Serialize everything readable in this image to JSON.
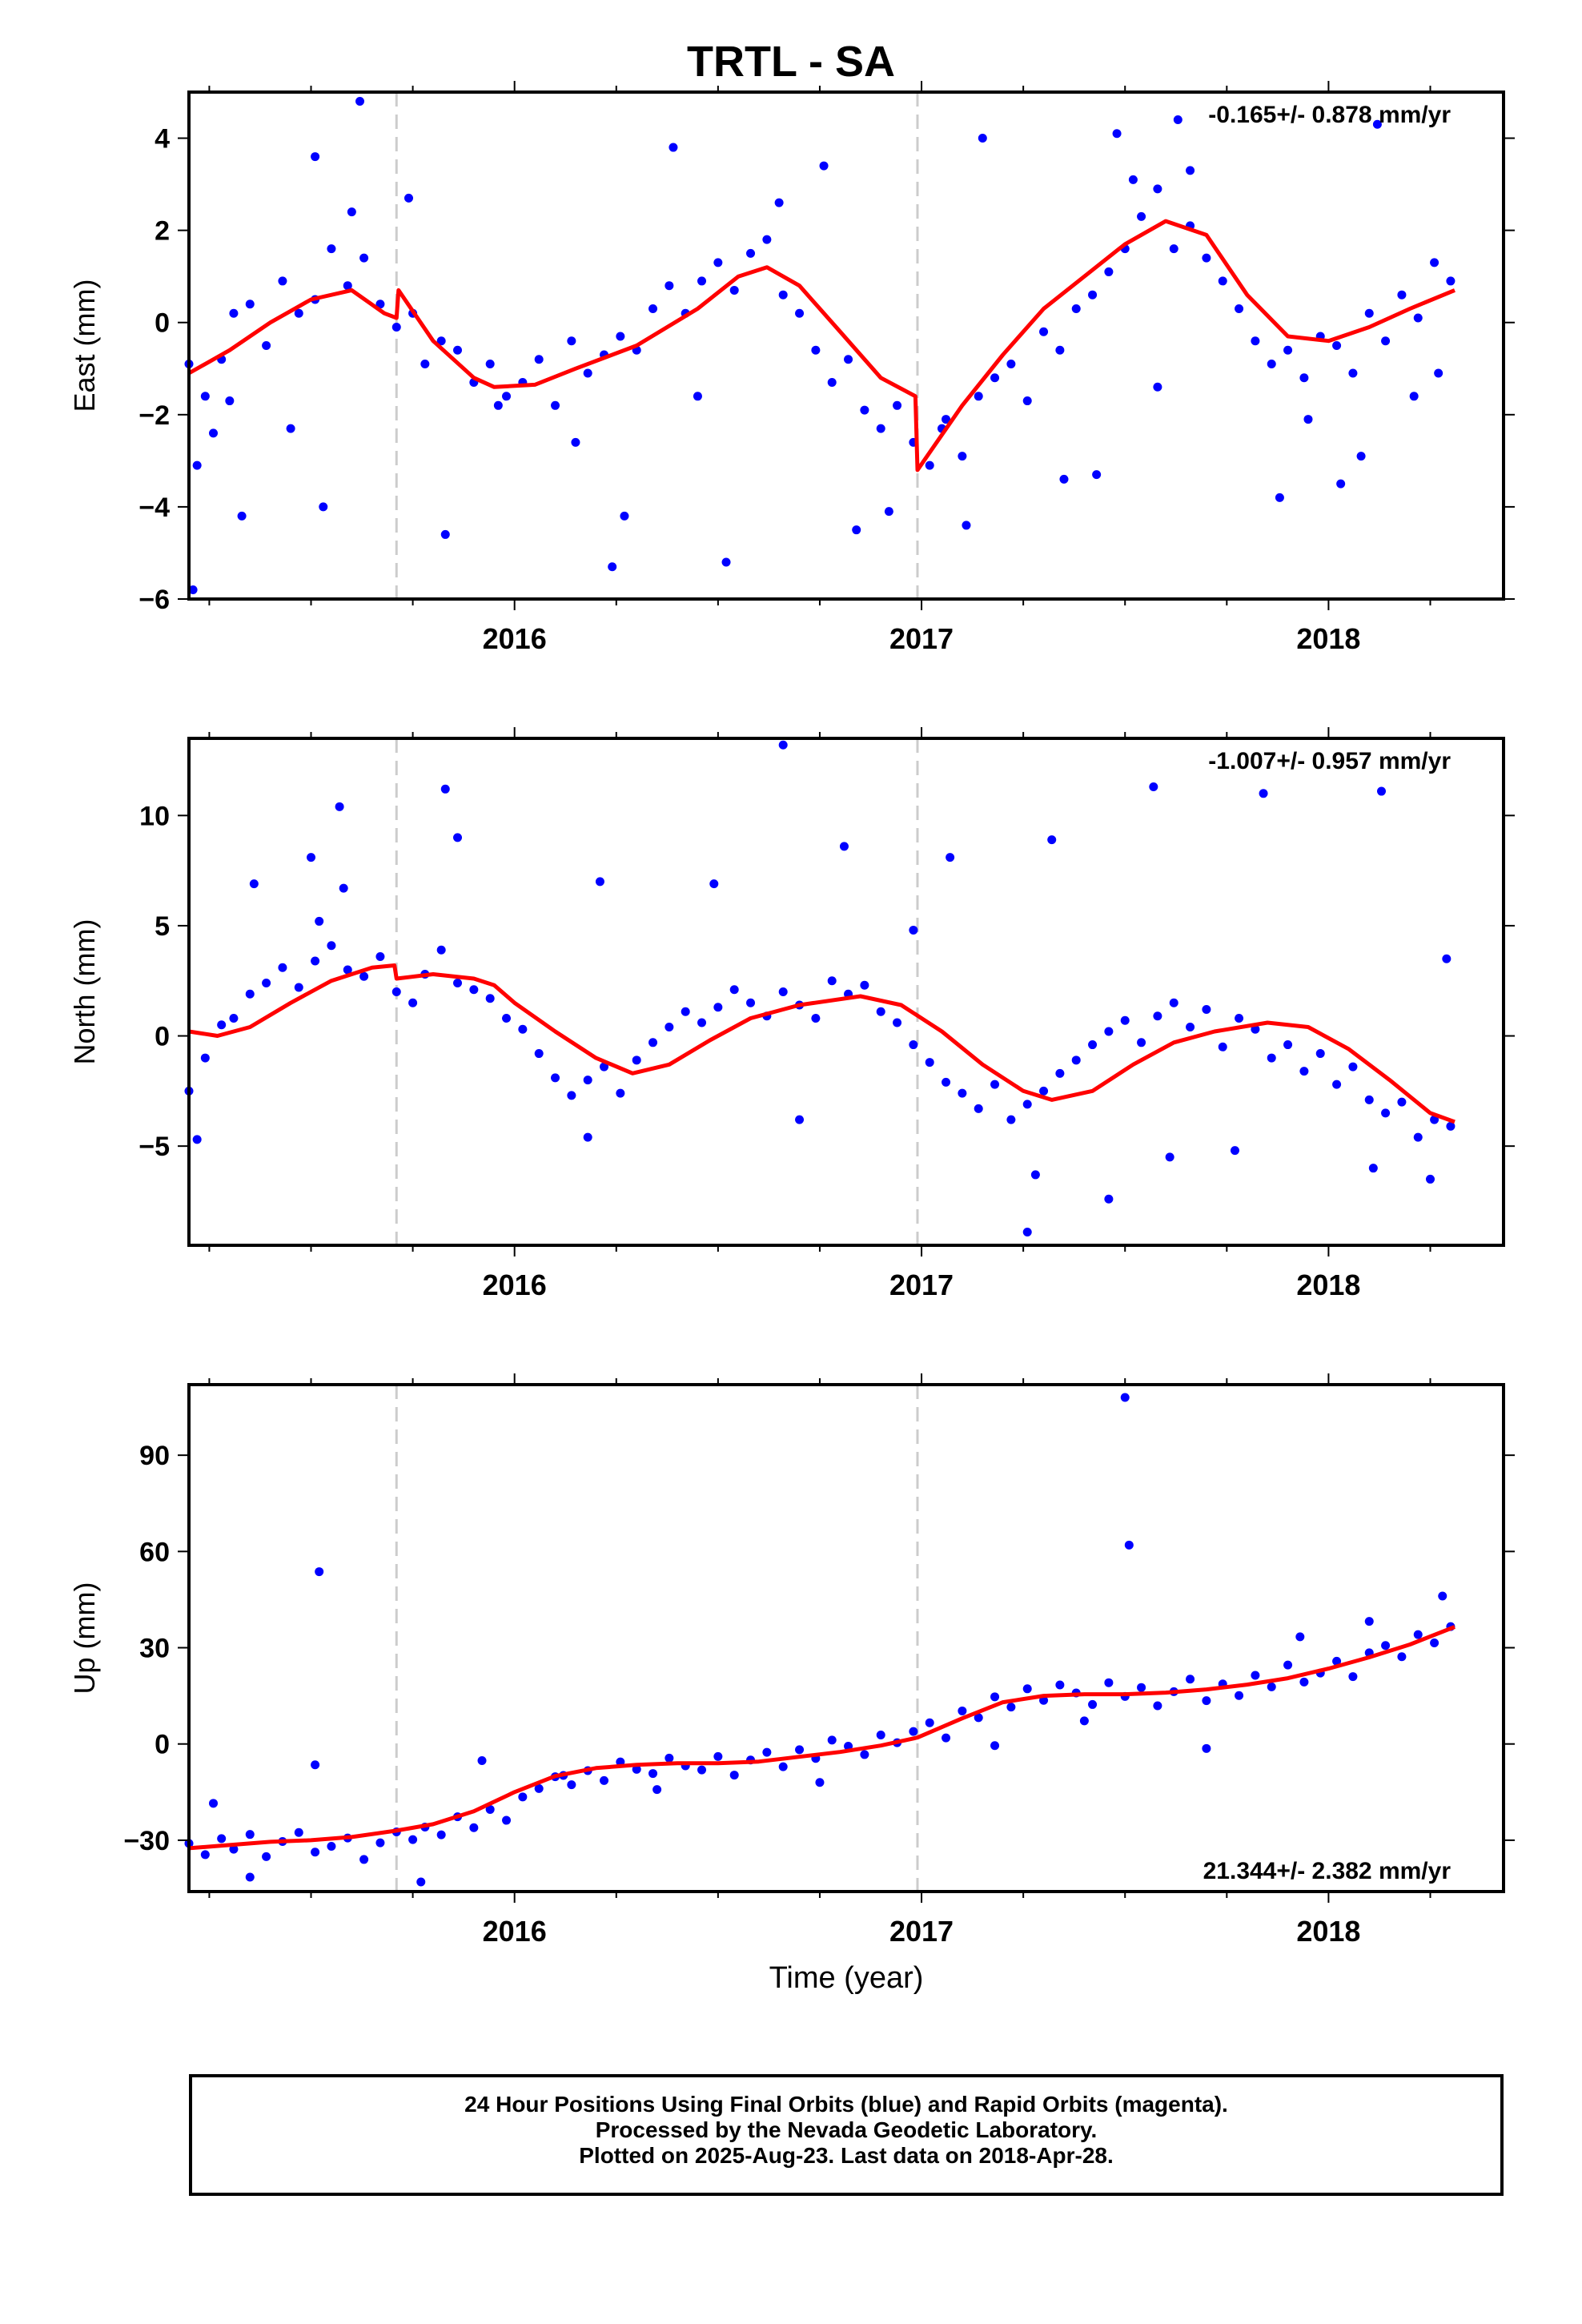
{
  "title": "TRTL - SA",
  "chart_data": [
    {
      "type": "scatter",
      "ylabel": "East (mm)",
      "xlabel": "",
      "rate_text": "-0.165+/- 0.878 mm/yr",
      "rate_position": "top-right",
      "xlim": [
        2015.2,
        2018.43
      ],
      "ylim": [
        -6.0,
        5.0
      ],
      "x_ticks": [
        2016,
        2017,
        2018
      ],
      "y_ticks": [
        -6,
        -4,
        -2,
        0,
        2,
        4
      ],
      "tick_labels_x": [
        "2016",
        "2017",
        "2018"
      ],
      "tick_labels_y": [
        "−6",
        "−4",
        "−2",
        "0",
        "2",
        "4"
      ],
      "equipment_changes": [
        2015.71,
        2016.99
      ],
      "colors": {
        "points": "#0000ff",
        "model": "#ff0000",
        "dashed": "#cccccc"
      },
      "series": [
        {
          "kind": "points",
          "x": [
            2015.2,
            2015.24,
            2015.28,
            2015.31,
            2015.35,
            2015.39,
            2015.43,
            2015.47,
            2015.51,
            2015.55,
            2015.59,
            2015.63,
            2015.67,
            2015.71,
            2015.75,
            2015.78,
            2015.82,
            2015.86,
            2015.9,
            2015.94,
            2015.98,
            2016.02,
            2016.06,
            2016.1,
            2016.14,
            2016.18,
            2016.22,
            2016.26,
            2016.3,
            2016.34,
            2016.38,
            2016.42,
            2016.46,
            2016.5,
            2016.54,
            2016.58,
            2016.62,
            2016.66,
            2016.7,
            2016.74,
            2016.78,
            2016.82,
            2016.86,
            2016.9,
            2016.94,
            2016.98,
            2017.02,
            2017.06,
            2017.1,
            2017.14,
            2017.18,
            2017.22,
            2017.26,
            2017.3,
            2017.34,
            2017.38,
            2017.42,
            2017.46,
            2017.5,
            2017.54,
            2017.58,
            2017.62,
            2017.66,
            2017.7,
            2017.74,
            2017.78,
            2017.82,
            2017.86,
            2017.9,
            2017.94,
            2017.98,
            2018.02,
            2018.06,
            2018.1,
            2018.14,
            2018.18,
            2018.22,
            2018.26,
            2018.3,
            2015.22,
            2015.26,
            2015.3,
            2015.45,
            2015.6,
            2015.74,
            2015.96,
            2016.15,
            2016.27,
            2016.45,
            2016.65,
            2016.92,
            2017.05,
            2017.35,
            2017.52,
            2017.66,
            2017.95,
            2018.08,
            2018.21,
            2015.21,
            2015.33,
            2015.53,
            2015.83,
            2016.24,
            2016.52,
            2016.84,
            2017.11,
            2017.43,
            2017.58,
            2017.88,
            2018.03,
            2018.27,
            2015.51,
            2015.62,
            2016.39,
            2016.76,
            2017.15,
            2017.48,
            2017.63,
            2018.12
          ],
          "y": [
            -0.9,
            -1.6,
            -0.8,
            0.2,
            0.4,
            -0.5,
            0.9,
            0.2,
            0.5,
            1.6,
            0.8,
            1.4,
            0.4,
            -0.1,
            0.2,
            -0.9,
            -0.4,
            -0.6,
            -1.3,
            -0.9,
            -1.6,
            -1.3,
            -0.8,
            -1.8,
            -0.4,
            -1.1,
            -0.7,
            -0.3,
            -0.6,
            0.3,
            0.8,
            0.2,
            0.9,
            1.3,
            0.7,
            1.5,
            1.8,
            0.6,
            0.2,
            -0.6,
            -1.3,
            -0.8,
            -1.9,
            -2.3,
            -1.8,
            -2.6,
            -3.1,
            -2.1,
            -2.9,
            -1.6,
            -1.2,
            -0.9,
            -1.7,
            -0.2,
            -0.6,
            0.3,
            0.6,
            1.1,
            1.6,
            2.3,
            2.9,
            1.6,
            2.1,
            1.4,
            0.9,
            0.3,
            -0.4,
            -0.9,
            -0.6,
            -1.2,
            -0.3,
            -0.5,
            -1.1,
            0.2,
            -0.4,
            0.6,
            0.1,
            1.3,
            0.9,
            -3.1,
            -2.4,
            -1.7,
            -2.3,
            2.4,
            2.7,
            -1.8,
            -2.6,
            -4.2,
            -1.6,
            2.6,
            -4.1,
            -2.3,
            -3.4,
            3.1,
            3.3,
            -2.1,
            -2.9,
            -1.6,
            -5.8,
            -4.2,
            -4.0,
            -4.6,
            -5.3,
            -5.2,
            -4.5,
            -4.4,
            -3.3,
            -1.4,
            -3.8,
            -3.5,
            -1.1,
            3.6,
            4.8,
            3.8,
            3.4,
            4.0,
            4.1,
            4.4,
            4.3
          ]
        },
        {
          "kind": "line",
          "name": "",
          "x": [
            2015.2,
            2015.3,
            2015.4,
            2015.5,
            2015.6,
            2015.68,
            2015.71,
            2015.715,
            2015.8,
            2015.9,
            2015.95,
            2016.05,
            2016.15,
            2016.3,
            2016.45,
            2016.55,
            2016.62,
            2016.7,
            2016.8,
            2016.9,
            2016.985,
            2016.99,
            2017.1,
            2017.2,
            2017.3,
            2017.4,
            2017.5,
            2017.6,
            2017.7,
            2017.8,
            2017.9,
            2018.0,
            2018.1,
            2018.2,
            2018.31
          ],
          "y": [
            -1.1,
            -0.6,
            0.0,
            0.5,
            0.7,
            0.2,
            0.1,
            0.7,
            -0.4,
            -1.2,
            -1.4,
            -1.35,
            -1.0,
            -0.5,
            0.3,
            1.0,
            1.2,
            0.8,
            -0.2,
            -1.2,
            -1.6,
            -3.2,
            -1.8,
            -0.7,
            0.3,
            1.0,
            1.7,
            2.2,
            1.9,
            0.6,
            -0.3,
            -0.4,
            -0.1,
            0.3,
            0.7
          ]
        }
      ]
    },
    {
      "type": "scatter",
      "ylabel": "North (mm)",
      "xlabel": "",
      "rate_text": "-1.007+/- 0.957 mm/yr",
      "rate_position": "top-right",
      "xlim": [
        2015.2,
        2018.43
      ],
      "ylim": [
        -9.5,
        13.5
      ],
      "x_ticks": [
        2016,
        2017,
        2018
      ],
      "y_ticks": [
        -5,
        0,
        5,
        10
      ],
      "tick_labels_x": [
        "2016",
        "2017",
        "2018"
      ],
      "tick_labels_y": [
        "−5",
        "0",
        "5",
        "10"
      ],
      "equipment_changes": [
        2015.71,
        2016.99
      ],
      "colors": {
        "points": "#0000ff",
        "model": "#ff0000",
        "dashed": "#cccccc"
      },
      "series": [
        {
          "kind": "points",
          "x": [
            2015.2,
            2015.24,
            2015.28,
            2015.31,
            2015.35,
            2015.39,
            2015.43,
            2015.47,
            2015.51,
            2015.55,
            2015.59,
            2015.63,
            2015.67,
            2015.71,
            2015.75,
            2015.78,
            2015.82,
            2015.86,
            2015.9,
            2015.94,
            2015.98,
            2016.02,
            2016.06,
            2016.1,
            2016.14,
            2016.18,
            2016.22,
            2016.26,
            2016.3,
            2016.34,
            2016.38,
            2016.42,
            2016.46,
            2016.5,
            2016.54,
            2016.58,
            2016.62,
            2016.66,
            2016.7,
            2016.74,
            2016.78,
            2016.82,
            2016.86,
            2016.9,
            2016.94,
            2016.98,
            2017.02,
            2017.06,
            2017.1,
            2017.14,
            2017.18,
            2017.22,
            2017.26,
            2017.3,
            2017.34,
            2017.38,
            2017.42,
            2017.46,
            2017.5,
            2017.54,
            2017.58,
            2017.62,
            2017.66,
            2017.7,
            2017.74,
            2017.78,
            2017.82,
            2017.86,
            2017.9,
            2017.94,
            2017.98,
            2018.02,
            2018.06,
            2018.1,
            2018.14,
            2018.18,
            2018.22,
            2018.26,
            2018.3,
            2015.36,
            2015.5,
            2015.57,
            2015.83,
            2016.21,
            2016.49,
            2016.81,
            2017.07,
            2017.32,
            2017.57,
            2017.84,
            2018.13,
            2018.29,
            2015.52,
            2015.58,
            2015.86,
            2016.66,
            2016.98,
            2017.28,
            2017.46,
            2017.77,
            2018.11,
            2015.22,
            2016.18,
            2016.7,
            2017.26,
            2017.61,
            2018.25
          ],
          "y": [
            -2.5,
            -1.0,
            0.5,
            0.8,
            1.9,
            2.4,
            3.1,
            2.2,
            3.4,
            4.1,
            3.0,
            2.7,
            3.6,
            2.0,
            1.5,
            2.8,
            3.9,
            2.4,
            2.1,
            1.7,
            0.8,
            0.3,
            -0.8,
            -1.9,
            -2.7,
            -2.0,
            -1.4,
            -2.6,
            -1.1,
            -0.3,
            0.4,
            1.1,
            0.6,
            1.3,
            2.1,
            1.5,
            0.9,
            2.0,
            1.4,
            0.8,
            2.5,
            1.9,
            2.3,
            1.1,
            0.6,
            -0.4,
            -1.2,
            -2.1,
            -2.6,
            -3.3,
            -2.2,
            -3.8,
            -3.1,
            -2.5,
            -1.7,
            -1.1,
            -0.4,
            0.2,
            0.7,
            -0.3,
            0.9,
            1.5,
            0.4,
            1.2,
            -0.5,
            0.8,
            0.3,
            -1.0,
            -0.4,
            -1.6,
            -0.8,
            -2.2,
            -1.4,
            -2.9,
            -3.5,
            -3.0,
            -4.6,
            -3.8,
            -4.1,
            6.9,
            8.1,
            10.4,
            11.2,
            7.0,
            6.9,
            8.6,
            8.1,
            8.9,
            11.3,
            11.0,
            11.1,
            3.5,
            5.2,
            6.7,
            9.0,
            13.2,
            4.8,
            -6.3,
            -7.4,
            -5.2,
            -6.0,
            -4.7,
            -4.6,
            -3.8,
            -8.9,
            -5.5,
            -6.5
          ]
        },
        {
          "kind": "line",
          "name": "",
          "x": [
            2015.2,
            2015.27,
            2015.35,
            2015.45,
            2015.55,
            2015.65,
            2015.705,
            2015.71,
            2015.8,
            2015.9,
            2015.95,
            2016.0,
            2016.1,
            2016.2,
            2016.29,
            2016.38,
            2016.48,
            2016.58,
            2016.7,
            2016.85,
            2016.95,
            2017.05,
            2017.15,
            2017.25,
            2017.32,
            2017.42,
            2017.52,
            2017.62,
            2017.72,
            2017.85,
            2017.95,
            2018.05,
            2018.15,
            2018.25,
            2018.31
          ],
          "y": [
            0.2,
            0.0,
            0.4,
            1.5,
            2.5,
            3.1,
            3.2,
            2.6,
            2.8,
            2.6,
            2.3,
            1.5,
            0.2,
            -1.0,
            -1.7,
            -1.3,
            -0.2,
            0.8,
            1.4,
            1.8,
            1.4,
            0.2,
            -1.3,
            -2.5,
            -2.9,
            -2.5,
            -1.3,
            -0.3,
            0.2,
            0.6,
            0.4,
            -0.6,
            -2.0,
            -3.5,
            -3.9
          ]
        }
      ]
    },
    {
      "type": "scatter",
      "ylabel": "Up (mm)",
      "xlabel": "Time (year)",
      "rate_text": "21.344+/- 2.382 mm/yr",
      "rate_position": "bottom-right",
      "xlim": [
        2015.2,
        2018.43
      ],
      "ylim": [
        -46.0,
        112.0
      ],
      "x_ticks": [
        2016,
        2017,
        2018
      ],
      "y_ticks": [
        -30,
        0,
        30,
        60,
        90
      ],
      "tick_labels_x": [
        "2016",
        "2017",
        "2018"
      ],
      "tick_labels_y": [
        "−30",
        "0",
        "30",
        "60",
        "90"
      ],
      "equipment_changes": [
        2015.71,
        2016.99
      ],
      "colors": {
        "points": "#0000ff",
        "model": "#ff0000",
        "dashed": "#cccccc"
      },
      "series": [
        {
          "kind": "points",
          "x": [
            2015.2,
            2015.24,
            2015.28,
            2015.31,
            2015.35,
            2015.39,
            2015.43,
            2015.47,
            2015.51,
            2015.55,
            2015.59,
            2015.63,
            2015.67,
            2015.71,
            2015.75,
            2015.78,
            2015.82,
            2015.86,
            2015.9,
            2015.94,
            2015.98,
            2016.02,
            2016.06,
            2016.1,
            2016.14,
            2016.18,
            2016.22,
            2016.26,
            2016.3,
            2016.34,
            2016.38,
            2016.42,
            2016.46,
            2016.5,
            2016.54,
            2016.58,
            2016.62,
            2016.66,
            2016.7,
            2016.74,
            2016.78,
            2016.82,
            2016.86,
            2016.9,
            2016.94,
            2016.98,
            2017.02,
            2017.06,
            2017.1,
            2017.14,
            2017.18,
            2017.22,
            2017.26,
            2017.3,
            2017.34,
            2017.38,
            2017.42,
            2017.46,
            2017.5,
            2017.54,
            2017.58,
            2017.62,
            2017.66,
            2017.7,
            2017.74,
            2017.78,
            2017.82,
            2017.86,
            2017.9,
            2017.94,
            2017.98,
            2018.02,
            2018.06,
            2018.1,
            2018.14,
            2018.18,
            2018.22,
            2018.26,
            2018.3,
            2015.52,
            2015.51,
            2015.92,
            2017.51,
            2017.5,
            2017.7,
            2015.77,
            2015.26,
            2016.35,
            2017.18,
            2017.93,
            2018.28,
            2015.35,
            2016.12,
            2016.75,
            2017.4,
            2018.1
          ],
          "y": [
            -31.0,
            -34.5,
            -29.5,
            -32.8,
            -28.2,
            -35.1,
            -30.4,
            -27.6,
            -33.7,
            -31.9,
            -29.3,
            -36.0,
            -30.8,
            -27.4,
            -29.8,
            -25.9,
            -28.3,
            -22.7,
            -26.1,
            -20.4,
            -23.8,
            -16.5,
            -13.9,
            -10.2,
            -12.7,
            -8.3,
            -11.4,
            -5.6,
            -7.9,
            -9.2,
            -4.4,
            -6.8,
            -8.1,
            -3.9,
            -9.7,
            -5.0,
            -2.6,
            -7.1,
            -1.8,
            -4.5,
            1.2,
            -0.7,
            -3.3,
            2.8,
            0.4,
            3.9,
            6.6,
            1.9,
            10.3,
            8.2,
            14.7,
            11.5,
            17.2,
            13.6,
            18.4,
            15.9,
            12.3,
            19.1,
            14.8,
            17.6,
            11.9,
            16.3,
            20.2,
            13.5,
            18.7,
            15.1,
            21.4,
            17.8,
            24.6,
            19.3,
            22.1,
            25.8,
            21.0,
            28.4,
            30.7,
            27.2,
            34.1,
            31.5,
            36.6,
            53.7,
            -6.5,
            -5.2,
            62.0,
            108.0,
            -1.4,
            -43.0,
            -18.5,
            -14.2,
            -0.5,
            33.4,
            46.1,
            -41.5,
            -9.8,
            -12.0,
            7.2,
            38.2
          ]
        },
        {
          "kind": "line",
          "name": "",
          "x": [
            2015.2,
            2015.3,
            2015.4,
            2015.5,
            2015.6,
            2015.71,
            2015.8,
            2015.9,
            2016.0,
            2016.1,
            2016.2,
            2016.3,
            2016.4,
            2016.5,
            2016.6,
            2016.7,
            2016.8,
            2016.9,
            2016.99,
            2017.1,
            2017.2,
            2017.3,
            2017.4,
            2017.5,
            2017.6,
            2017.7,
            2017.8,
            2017.9,
            2018.0,
            2018.1,
            2018.2,
            2018.31
          ],
          "y": [
            -32.5,
            -31.5,
            -30.5,
            -30.0,
            -29.0,
            -27.0,
            -25.0,
            -21.0,
            -15.0,
            -10.0,
            -7.5,
            -6.5,
            -6.0,
            -6.0,
            -5.5,
            -4.0,
            -2.5,
            -0.5,
            2.0,
            8.0,
            13.0,
            15.0,
            15.5,
            15.5,
            16.0,
            17.0,
            18.5,
            20.5,
            23.5,
            27.0,
            31.0,
            36.5
          ]
        }
      ]
    }
  ],
  "footer": {
    "line1": "24 Hour Positions Using Final Orbits (blue) and Rapid Orbits (magenta).",
    "line2": "Processed by the Nevada Geodetic Laboratory.",
    "line3": "Plotted on 2025-Aug-23. Last data on 2018-Apr-28."
  }
}
